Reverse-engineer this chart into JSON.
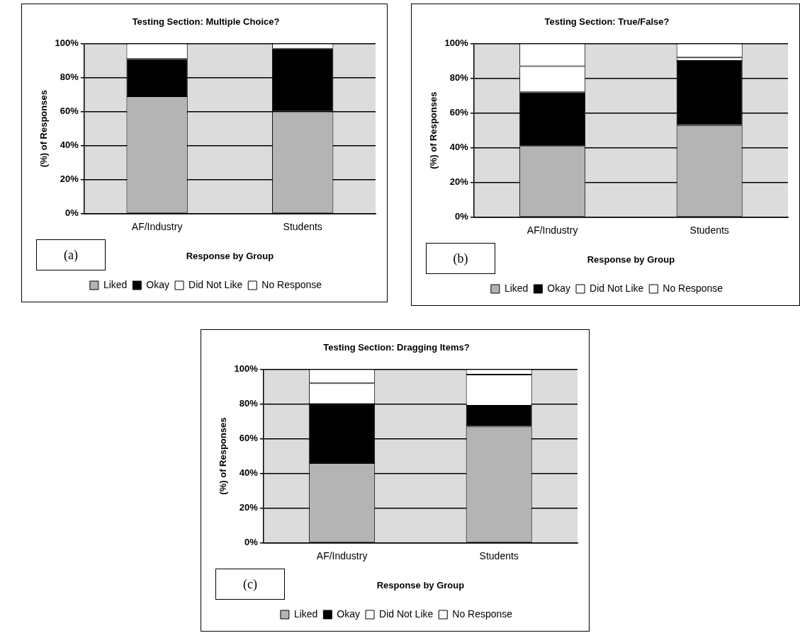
{
  "chart_data": [
    {
      "type": "bar",
      "title": "Testing Section: Multiple Choice?",
      "xlabel": "Response by Group",
      "ylabel": "(%) of Responses",
      "categories": [
        "AF/Industry",
        "Students"
      ],
      "stacked": true,
      "grid": "y",
      "legend": "bottom",
      "annotations": [
        "(a)"
      ],
      "ylim": [
        0,
        100
      ],
      "yticks": [
        {
          "value": 0,
          "label": "0%"
        },
        {
          "value": 20,
          "label": "20%"
        },
        {
          "value": 40,
          "label": "40%"
        },
        {
          "value": 60,
          "label": "60%"
        },
        {
          "value": 80,
          "label": "80%"
        },
        {
          "value": 100,
          "label": "100%"
        }
      ],
      "series": [
        {
          "name": "Liked",
          "color": "#b4b4b4",
          "values": [
            69,
            60
          ]
        },
        {
          "name": "Okay",
          "color": "#000000",
          "values": [
            22,
            37
          ]
        },
        {
          "name": "Did Not Like",
          "color": "#ffffff",
          "values": [
            9,
            3
          ]
        },
        {
          "name": "No Response",
          "color": "#ffffff",
          "values": [
            0,
            0
          ]
        }
      ]
    },
    {
      "type": "bar",
      "title": "Testing Section: True/False?",
      "xlabel": "Response by Group",
      "ylabel": "(%) of Responses",
      "categories": [
        "AF/Industry",
        "Students"
      ],
      "stacked": true,
      "grid": "y",
      "legend": "bottom",
      "annotations": [
        "(b)"
      ],
      "ylim": [
        0,
        100
      ],
      "yticks": [
        {
          "value": 0,
          "label": "0%"
        },
        {
          "value": 20,
          "label": "20%"
        },
        {
          "value": 40,
          "label": "40%"
        },
        {
          "value": 60,
          "label": "60%"
        },
        {
          "value": 80,
          "label": "80%"
        },
        {
          "value": 100,
          "label": "100%"
        }
      ],
      "series": [
        {
          "name": "Liked",
          "color": "#b4b4b4",
          "values": [
            41,
            53
          ]
        },
        {
          "name": "Okay",
          "color": "#000000",
          "values": [
            31,
            37
          ]
        },
        {
          "name": "Did Not Like",
          "color": "#ffffff",
          "values": [
            15,
            2
          ]
        },
        {
          "name": "No Response",
          "color": "#ffffff",
          "values": [
            13,
            8
          ]
        }
      ]
    },
    {
      "type": "bar",
      "title": "Testing Section: Dragging Items?",
      "xlabel": "Response by Group",
      "ylabel": "(%) of Responses",
      "categories": [
        "AF/Industry",
        "Students"
      ],
      "stacked": true,
      "grid": "y",
      "legend": "bottom",
      "annotations": [
        "(c)"
      ],
      "ylim": [
        0,
        100
      ],
      "yticks": [
        {
          "value": 0,
          "label": "0%"
        },
        {
          "value": 20,
          "label": "20%"
        },
        {
          "value": 40,
          "label": "40%"
        },
        {
          "value": 60,
          "label": "60%"
        },
        {
          "value": 80,
          "label": "80%"
        },
        {
          "value": 100,
          "label": "100%"
        }
      ],
      "series": [
        {
          "name": "Liked",
          "color": "#b4b4b4",
          "values": [
            46,
            67
          ]
        },
        {
          "name": "Okay",
          "color": "#000000",
          "values": [
            34,
            12
          ]
        },
        {
          "name": "Did Not Like",
          "color": "#ffffff",
          "values": [
            12,
            18
          ]
        },
        {
          "name": "No Response",
          "color": "#ffffff",
          "values": [
            8,
            3
          ]
        }
      ]
    }
  ]
}
